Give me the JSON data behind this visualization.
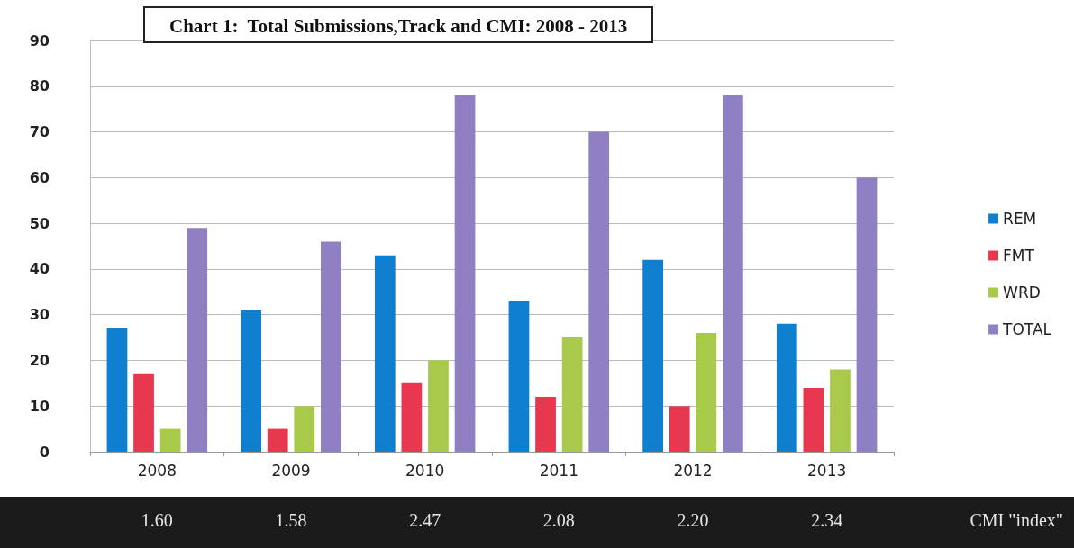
{
  "chart_data": {
    "type": "bar",
    "title": "Chart 1:  Total Submissions,Track and CMI: 2008 - 2013",
    "categories": [
      "2008",
      "2009",
      "2010",
      "2011",
      "2012",
      "2013"
    ],
    "series": [
      {
        "name": "REM",
        "color": "#0f7fd0",
        "values": [
          27,
          31,
          43,
          33,
          42,
          28
        ]
      },
      {
        "name": "FMT",
        "color": "#e8384f",
        "values": [
          17,
          5,
          15,
          12,
          10,
          14
        ]
      },
      {
        "name": "WRD",
        "color": "#a9c94a",
        "values": [
          5,
          10,
          20,
          25,
          26,
          18
        ]
      },
      {
        "name": "TOTAL",
        "color": "#8f80c4",
        "values": [
          49,
          46,
          78,
          70,
          78,
          60
        ]
      }
    ],
    "ylim": [
      0,
      90
    ],
    "yticks": [
      0,
      10,
      20,
      30,
      40,
      50,
      60,
      70,
      80,
      90
    ],
    "grid": "y",
    "legend": "right",
    "annotations": [
      "1.60",
      "1.58",
      "2.47",
      "2.08",
      "2.20",
      "2.34",
      "CMI \"index\""
    ]
  }
}
